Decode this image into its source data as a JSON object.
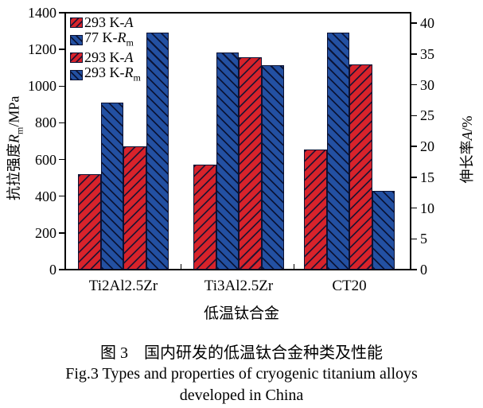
{
  "figure": {
    "caption_cn": "图 3　国内研发的低温钛合金种类及性能",
    "caption_en_line1": "Fig.3 Types and properties of cryogenic titanium alloys",
    "caption_en_line2": "developed in China"
  },
  "chart_data": {
    "type": "bar",
    "title": "",
    "categories": [
      "Ti2Al2.5Zr",
      "Ti3Al2.5Zr",
      "CT20"
    ],
    "series": [
      {
        "name": "293 K-A",
        "name_parts": {
          "prefix": "293 K-",
          "symbol": "A",
          "sub": ""
        },
        "color": "#d8232b",
        "hatch": "/",
        "axis": "right",
        "unit": "%",
        "values": [
          15.5,
          17,
          19.5
        ]
      },
      {
        "name": "77 K-Rm",
        "name_parts": {
          "prefix": "77 K-",
          "symbol": "R",
          "sub": "m"
        },
        "color": "#2350a2",
        "hatch": "\\",
        "axis": "left",
        "unit": "MPa",
        "values": [
          910,
          1185,
          1290
        ]
      },
      {
        "name": "293 K-A",
        "name_parts": {
          "prefix": "293 K-",
          "symbol": "A",
          "sub": ""
        },
        "color": "#d8232b",
        "hatch": "/",
        "axis": "right",
        "unit": "%",
        "values": [
          20,
          34.4,
          33.3
        ]
      },
      {
        "name": "293 K-Rm",
        "name_parts": {
          "prefix": "293 K-",
          "symbol": "R",
          "sub": "m"
        },
        "color": "#2350a2",
        "hatch": "\\",
        "axis": "left",
        "unit": "MPa",
        "values": [
          1290,
          1115,
          430
        ]
      }
    ],
    "left_axis": {
      "title_cn": "抗拉强度",
      "title_symbol": "R",
      "title_sub": "m",
      "title_unit": "/MPa",
      "min": 0,
      "max": 1400,
      "step": 200
    },
    "right_axis": {
      "title_cn": "伸长率",
      "title_symbol": "A",
      "title_sub": "",
      "title_unit": "/%",
      "min": 0,
      "max": 40,
      "step": 5
    },
    "x_axis": {
      "label": "低温钛合金"
    },
    "legend_position": "top-left-inside",
    "grid": false
  }
}
